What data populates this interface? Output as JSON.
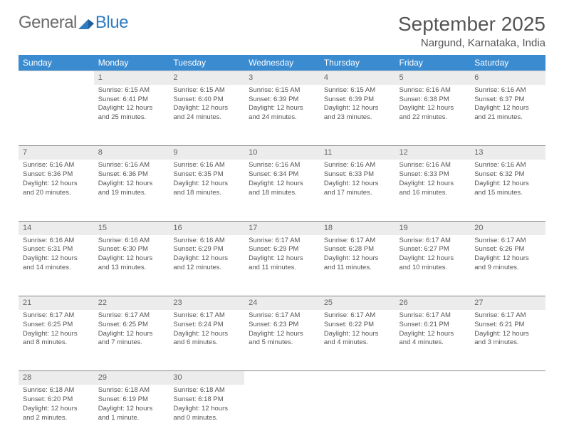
{
  "logo": {
    "textA": "General",
    "textB": "Blue"
  },
  "title": "September 2025",
  "location": "Nargund, Karnataka, India",
  "colors": {
    "header_bg": "#3b8bd0",
    "header_text": "#ffffff",
    "daynum_bg": "#ececec",
    "row_border_first": "#2965a0",
    "row_border": "#888888",
    "body_text": "#555555",
    "logo_gray": "#6b6b6b",
    "logo_blue": "#2e7bc0"
  },
  "weekdays": [
    "Sunday",
    "Monday",
    "Tuesday",
    "Wednesday",
    "Thursday",
    "Friday",
    "Saturday"
  ],
  "weeks": [
    [
      null,
      {
        "n": "1",
        "sr": "Sunrise: 6:15 AM",
        "ss": "Sunset: 6:41 PM",
        "d1": "Daylight: 12 hours",
        "d2": "and 25 minutes."
      },
      {
        "n": "2",
        "sr": "Sunrise: 6:15 AM",
        "ss": "Sunset: 6:40 PM",
        "d1": "Daylight: 12 hours",
        "d2": "and 24 minutes."
      },
      {
        "n": "3",
        "sr": "Sunrise: 6:15 AM",
        "ss": "Sunset: 6:39 PM",
        "d1": "Daylight: 12 hours",
        "d2": "and 24 minutes."
      },
      {
        "n": "4",
        "sr": "Sunrise: 6:15 AM",
        "ss": "Sunset: 6:39 PM",
        "d1": "Daylight: 12 hours",
        "d2": "and 23 minutes."
      },
      {
        "n": "5",
        "sr": "Sunrise: 6:16 AM",
        "ss": "Sunset: 6:38 PM",
        "d1": "Daylight: 12 hours",
        "d2": "and 22 minutes."
      },
      {
        "n": "6",
        "sr": "Sunrise: 6:16 AM",
        "ss": "Sunset: 6:37 PM",
        "d1": "Daylight: 12 hours",
        "d2": "and 21 minutes."
      }
    ],
    [
      {
        "n": "7",
        "sr": "Sunrise: 6:16 AM",
        "ss": "Sunset: 6:36 PM",
        "d1": "Daylight: 12 hours",
        "d2": "and 20 minutes."
      },
      {
        "n": "8",
        "sr": "Sunrise: 6:16 AM",
        "ss": "Sunset: 6:36 PM",
        "d1": "Daylight: 12 hours",
        "d2": "and 19 minutes."
      },
      {
        "n": "9",
        "sr": "Sunrise: 6:16 AM",
        "ss": "Sunset: 6:35 PM",
        "d1": "Daylight: 12 hours",
        "d2": "and 18 minutes."
      },
      {
        "n": "10",
        "sr": "Sunrise: 6:16 AM",
        "ss": "Sunset: 6:34 PM",
        "d1": "Daylight: 12 hours",
        "d2": "and 18 minutes."
      },
      {
        "n": "11",
        "sr": "Sunrise: 6:16 AM",
        "ss": "Sunset: 6:33 PM",
        "d1": "Daylight: 12 hours",
        "d2": "and 17 minutes."
      },
      {
        "n": "12",
        "sr": "Sunrise: 6:16 AM",
        "ss": "Sunset: 6:33 PM",
        "d1": "Daylight: 12 hours",
        "d2": "and 16 minutes."
      },
      {
        "n": "13",
        "sr": "Sunrise: 6:16 AM",
        "ss": "Sunset: 6:32 PM",
        "d1": "Daylight: 12 hours",
        "d2": "and 15 minutes."
      }
    ],
    [
      {
        "n": "14",
        "sr": "Sunrise: 6:16 AM",
        "ss": "Sunset: 6:31 PM",
        "d1": "Daylight: 12 hours",
        "d2": "and 14 minutes."
      },
      {
        "n": "15",
        "sr": "Sunrise: 6:16 AM",
        "ss": "Sunset: 6:30 PM",
        "d1": "Daylight: 12 hours",
        "d2": "and 13 minutes."
      },
      {
        "n": "16",
        "sr": "Sunrise: 6:16 AM",
        "ss": "Sunset: 6:29 PM",
        "d1": "Daylight: 12 hours",
        "d2": "and 12 minutes."
      },
      {
        "n": "17",
        "sr": "Sunrise: 6:17 AM",
        "ss": "Sunset: 6:29 PM",
        "d1": "Daylight: 12 hours",
        "d2": "and 11 minutes."
      },
      {
        "n": "18",
        "sr": "Sunrise: 6:17 AM",
        "ss": "Sunset: 6:28 PM",
        "d1": "Daylight: 12 hours",
        "d2": "and 11 minutes."
      },
      {
        "n": "19",
        "sr": "Sunrise: 6:17 AM",
        "ss": "Sunset: 6:27 PM",
        "d1": "Daylight: 12 hours",
        "d2": "and 10 minutes."
      },
      {
        "n": "20",
        "sr": "Sunrise: 6:17 AM",
        "ss": "Sunset: 6:26 PM",
        "d1": "Daylight: 12 hours",
        "d2": "and 9 minutes."
      }
    ],
    [
      {
        "n": "21",
        "sr": "Sunrise: 6:17 AM",
        "ss": "Sunset: 6:25 PM",
        "d1": "Daylight: 12 hours",
        "d2": "and 8 minutes."
      },
      {
        "n": "22",
        "sr": "Sunrise: 6:17 AM",
        "ss": "Sunset: 6:25 PM",
        "d1": "Daylight: 12 hours",
        "d2": "and 7 minutes."
      },
      {
        "n": "23",
        "sr": "Sunrise: 6:17 AM",
        "ss": "Sunset: 6:24 PM",
        "d1": "Daylight: 12 hours",
        "d2": "and 6 minutes."
      },
      {
        "n": "24",
        "sr": "Sunrise: 6:17 AM",
        "ss": "Sunset: 6:23 PM",
        "d1": "Daylight: 12 hours",
        "d2": "and 5 minutes."
      },
      {
        "n": "25",
        "sr": "Sunrise: 6:17 AM",
        "ss": "Sunset: 6:22 PM",
        "d1": "Daylight: 12 hours",
        "d2": "and 4 minutes."
      },
      {
        "n": "26",
        "sr": "Sunrise: 6:17 AM",
        "ss": "Sunset: 6:21 PM",
        "d1": "Daylight: 12 hours",
        "d2": "and 4 minutes."
      },
      {
        "n": "27",
        "sr": "Sunrise: 6:17 AM",
        "ss": "Sunset: 6:21 PM",
        "d1": "Daylight: 12 hours",
        "d2": "and 3 minutes."
      }
    ],
    [
      {
        "n": "28",
        "sr": "Sunrise: 6:18 AM",
        "ss": "Sunset: 6:20 PM",
        "d1": "Daylight: 12 hours",
        "d2": "and 2 minutes."
      },
      {
        "n": "29",
        "sr": "Sunrise: 6:18 AM",
        "ss": "Sunset: 6:19 PM",
        "d1": "Daylight: 12 hours",
        "d2": "and 1 minute."
      },
      {
        "n": "30",
        "sr": "Sunrise: 6:18 AM",
        "ss": "Sunset: 6:18 PM",
        "d1": "Daylight: 12 hours",
        "d2": "and 0 minutes."
      },
      null,
      null,
      null,
      null
    ]
  ]
}
